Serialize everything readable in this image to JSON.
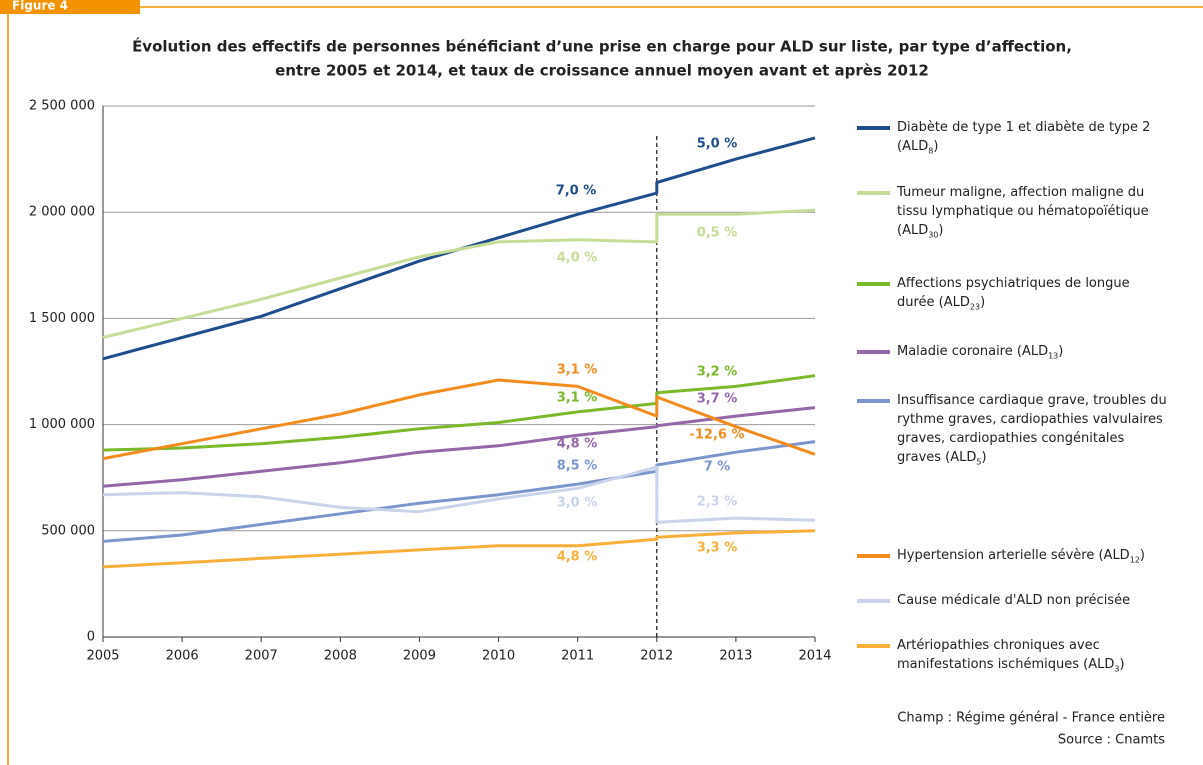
{
  "figure_label": "Figure 4",
  "chart_data": {
    "type": "line",
    "title": [
      "Évolution  des effectifs de personnes bénéficiant d’une prise en charge pour ALD sur liste, par type d’affection,",
      "entre 2005 et 2014, et taux de croissance annuel moyen avant et après 2012"
    ],
    "x": [
      2005,
      2006,
      2007,
      2008,
      2009,
      2010,
      2011,
      2012,
      2012,
      2013,
      2014
    ],
    "xlim": [
      2005,
      2014
    ],
    "xticks": [
      2005,
      2006,
      2007,
      2008,
      2009,
      2010,
      2011,
      2012,
      2013,
      2014
    ],
    "ylim": [
      0,
      2500000
    ],
    "yticks": [
      0,
      {
        "value": 500000,
        "label": "500 000"
      },
      {
        "value": 1000000,
        "label": "1 000 000"
      },
      {
        "value": 1500000,
        "label": "1 500 000"
      },
      {
        "value": 2000000,
        "label": "2 000 000"
      },
      {
        "value": 2500000,
        "label": "2 500 000"
      }
    ],
    "grid": true,
    "legend": "right",
    "series": [
      {
        "name": "Diabète de type 1 et diabète de type 2 (ALD8)",
        "color": "#1f4e8c",
        "values": [
          1310000,
          1410000,
          1510000,
          1640000,
          1770000,
          1880000,
          1990000,
          2090000,
          2140000,
          2250000,
          2350000
        ],
        "rate_labels": [
          "7,0 %",
          "5,0 %"
        ]
      },
      {
        "name": "Tumeur maligne, affection maligne du tissu lymphatique ou hématopoïétique (ALD30)",
        "color": "#c5dd96",
        "values": [
          1410000,
          1500000,
          1590000,
          1690000,
          1790000,
          1860000,
          1870000,
          1860000,
          1990000,
          1990000,
          2010000
        ],
        "rate_labels": [
          "4,0 %",
          "0,5 %"
        ]
      },
      {
        "name": "Affections psychiatriques de longue durée (ALD23)",
        "color": "#7ab929",
        "values": [
          880000,
          890000,
          910000,
          940000,
          980000,
          1010000,
          1060000,
          1100000,
          1150000,
          1180000,
          1230000
        ],
        "rate_labels": [
          "3,1 %",
          "3,2 %"
        ]
      },
      {
        "name": "Maladie coronaire (ALD13)",
        "color": "#9467a8",
        "values": [
          710000,
          740000,
          780000,
          820000,
          870000,
          900000,
          950000,
          990000,
          995000,
          1040000,
          1080000
        ],
        "rate_labels": [
          "4,8 %",
          "3,7 %"
        ]
      },
      {
        "name": "Insuffisance cardiaque grave, troubles du rythme graves, cardiopathies valvulaires graves, cardiopathies congénitales graves (ALD5)",
        "color": "#7b96cc",
        "values": [
          450000,
          480000,
          530000,
          580000,
          630000,
          670000,
          720000,
          780000,
          810000,
          870000,
          920000
        ],
        "rate_labels": [
          "8,5 %",
          "7 %"
        ]
      },
      {
        "name": "Hypertension arterielle sévère (ALD12)",
        "color": "#f28c1e",
        "values": [
          840000,
          910000,
          980000,
          1050000,
          1140000,
          1210000,
          1180000,
          1040000,
          1130000,
          990000,
          860000
        ],
        "rate_labels": [
          "3,1 %",
          "-12,6 %"
        ]
      },
      {
        "name": "Cause médicale d'ALD non précisée",
        "color": "#c9d3ea",
        "values": [
          670000,
          680000,
          660000,
          610000,
          590000,
          650000,
          700000,
          800000,
          540000,
          560000,
          550000
        ],
        "rate_labels": [
          "3,0 %",
          "2,3 %"
        ]
      },
      {
        "name": "Artériopathies chroniques avec manifestations ischémiques (ALD3)",
        "color": "#f9b03b",
        "values": [
          330000,
          350000,
          370000,
          390000,
          410000,
          430000,
          430000,
          460000,
          470000,
          490000,
          500000
        ],
        "rate_labels": [
          "4,8 %",
          "3,3 %"
        ]
      }
    ],
    "notes": [
      "Champ : Régime général - France entière",
      "Source : Cnamts"
    ]
  }
}
